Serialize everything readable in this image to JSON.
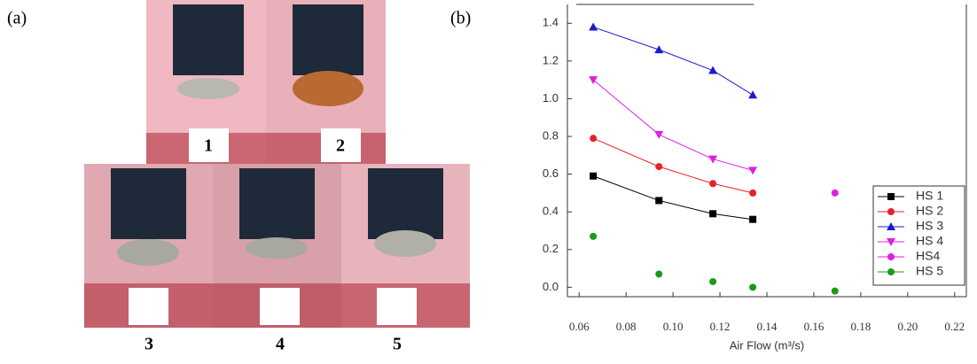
{
  "panel_a": {
    "label": "(a)",
    "photos": [
      "1",
      "2",
      "3",
      "4",
      "5"
    ]
  },
  "chart_data": {
    "type": "line",
    "label": "(b)",
    "x_label": "Air Flow (m³/s)",
    "xlim": [
      0.055,
      0.225
    ],
    "ylim": [
      -0.05,
      1.5
    ],
    "xticks": [
      {
        "value": 0.06,
        "label": "0.06"
      },
      {
        "value": 0.08,
        "label": "0.08"
      },
      {
        "value": 0.1,
        "label": "0.10"
      },
      {
        "value": 0.12,
        "label": "0.12"
      },
      {
        "value": 0.14,
        "label": "0.14"
      },
      {
        "value": 0.16,
        "label": "0.16"
      },
      {
        "value": 0.18,
        "label": "0.18"
      },
      {
        "value": 0.2,
        "label": "0.20"
      },
      {
        "value": 0.22,
        "label": "0.22"
      }
    ],
    "yticks": [
      {
        "value": 0,
        "label": "0.0"
      },
      0.2,
      0.4,
      0.6,
      0.8,
      {
        "value": 1,
        "label": "1.0"
      },
      1.2,
      1.4
    ],
    "legend": "lower right",
    "series": [
      {
        "name": "HS 1",
        "color": "#000000",
        "marker": "square",
        "line": true,
        "x": [
          0.066,
          0.094,
          0.117,
          0.134
        ],
        "values": [
          0.59,
          0.46,
          0.39,
          0.36
        ]
      },
      {
        "name": "HS 2",
        "color": "#e8202a",
        "marker": "circle",
        "line": true,
        "x": [
          0.066,
          0.094,
          0.117,
          0.134
        ],
        "values": [
          0.79,
          0.64,
          0.55,
          0.5
        ]
      },
      {
        "name": "HS 3",
        "color": "#1a1ad0",
        "marker": "triangle-up",
        "line": true,
        "x": [
          0.066,
          0.094,
          0.117,
          0.134
        ],
        "values": [
          1.38,
          1.26,
          1.15,
          1.02
        ]
      },
      {
        "name": "HS 4",
        "color": "#e020e0",
        "marker": "triangle-down",
        "line": true,
        "x": [
          0.066,
          0.094,
          0.117,
          0.134
        ],
        "values": [
          1.1,
          0.81,
          0.68,
          0.62
        ]
      },
      {
        "name": "HS4",
        "color": "#e020e0",
        "marker": "circle",
        "line": false,
        "x": [
          0.169
        ],
        "values": [
          0.5
        ]
      },
      {
        "name": "HS 5",
        "color": "#1a9a1a",
        "marker": "circle",
        "line": false,
        "x": [
          0.066,
          0.094,
          0.117,
          0.134,
          0.169
        ],
        "values": [
          0.27,
          0.07,
          0.03,
          0.0,
          -0.02
        ]
      }
    ]
  }
}
